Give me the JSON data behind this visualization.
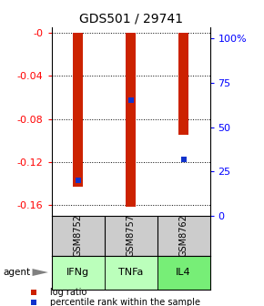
{
  "title": "GDS501 / 29741",
  "samples": [
    "GSM8752",
    "GSM8757",
    "GSM8762"
  ],
  "agents": [
    "IFNg",
    "TNFa",
    "IL4"
  ],
  "log_ratios": [
    -0.143,
    -0.162,
    -0.095
  ],
  "percentile_ranks": [
    20,
    65,
    32
  ],
  "ylim_left": [
    -0.17,
    0.005
  ],
  "ylim_right": [
    0,
    106.25
  ],
  "yticks_left": [
    -0.16,
    -0.12,
    -0.08,
    -0.04,
    0.0
  ],
  "ytick_labels_left": [
    "-0.16",
    "-0.12",
    "-0.08",
    "-0.04",
    "-0"
  ],
  "yticks_right": [
    0,
    25,
    50,
    75,
    100
  ],
  "ytick_labels_right": [
    "0",
    "25",
    "50",
    "75",
    "100%"
  ],
  "bar_color": "#cc2200",
  "dot_color": "#1133cc",
  "sample_bg_color": "#cccccc",
  "agent_colors": [
    "#bbffbb",
    "#bbffbb",
    "#77ee77"
  ],
  "title_fontsize": 10,
  "tick_fontsize": 8,
  "legend_fontsize": 7
}
